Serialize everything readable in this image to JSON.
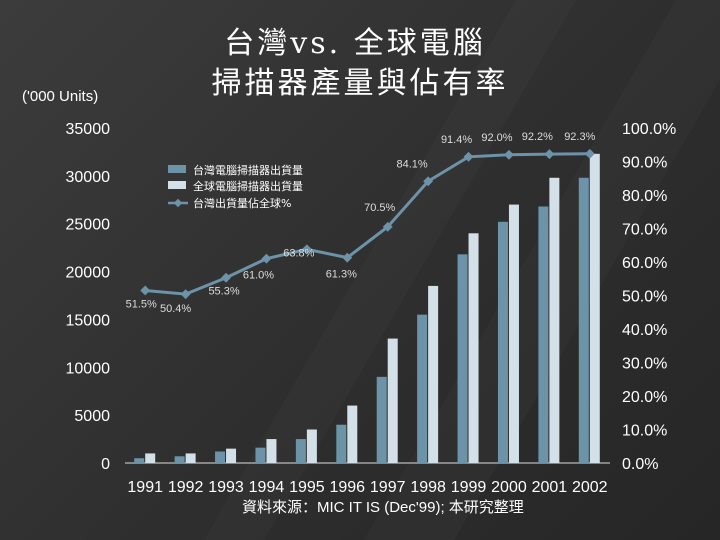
{
  "slide": {
    "title_line1": "台灣vs. 全球電腦",
    "title_line2": "掃描器產量與佔有率",
    "units_label": "('000 Units)",
    "source": "資料來源：MIC IT IS (Dec'99); 本研究整理"
  },
  "chart_data": {
    "type": "bar",
    "categories": [
      "1991",
      "1992",
      "1993",
      "1994",
      "1995",
      "1996",
      "1997",
      "1998",
      "1999",
      "2000",
      "2001",
      "2002"
    ],
    "series": [
      {
        "name": "台灣電腦掃描器出貨量",
        "kind": "bar",
        "color": "#6c93a8",
        "values": [
          500,
          700,
          1200,
          1600,
          2500,
          4000,
          9000,
          15500,
          21800,
          25200,
          26800,
          29800
        ]
      },
      {
        "name": "全球電腦掃描器出貨量",
        "kind": "bar",
        "color": "#d4e0e8",
        "values": [
          1000,
          1000,
          1500,
          2500,
          3500,
          6000,
          13000,
          18500,
          24000,
          27000,
          29800,
          32300
        ]
      },
      {
        "name": "台灣出貨量佔全球%",
        "kind": "line",
        "axis": "right",
        "color": "#6c93a8",
        "values": [
          51.5,
          50.4,
          55.3,
          61.0,
          63.8,
          61.3,
          70.5,
          84.1,
          91.4,
          92.0,
          92.2,
          92.3
        ]
      }
    ],
    "line_labels": [
      "51.5%",
      "50.4%",
      "55.3%",
      "61.0%",
      "63.8%",
      "61.3%",
      "70.5%",
      "84.1%",
      "91.4%",
      "92.0%",
      "92.2%",
      "92.3%"
    ],
    "y_left": {
      "min": 0,
      "max": 35000,
      "ticks": [
        "0",
        "5000",
        "10000",
        "15000",
        "20000",
        "25000",
        "30000",
        "35000"
      ]
    },
    "y_right": {
      "min": 0,
      "max": 100,
      "ticks": [
        "0.0%",
        "10.0%",
        "20.0%",
        "30.0%",
        "40.0%",
        "50.0%",
        "60.0%",
        "70.0%",
        "80.0%",
        "90.0%",
        "100.0%"
      ]
    },
    "grid": false,
    "legend_position": "top-left"
  }
}
